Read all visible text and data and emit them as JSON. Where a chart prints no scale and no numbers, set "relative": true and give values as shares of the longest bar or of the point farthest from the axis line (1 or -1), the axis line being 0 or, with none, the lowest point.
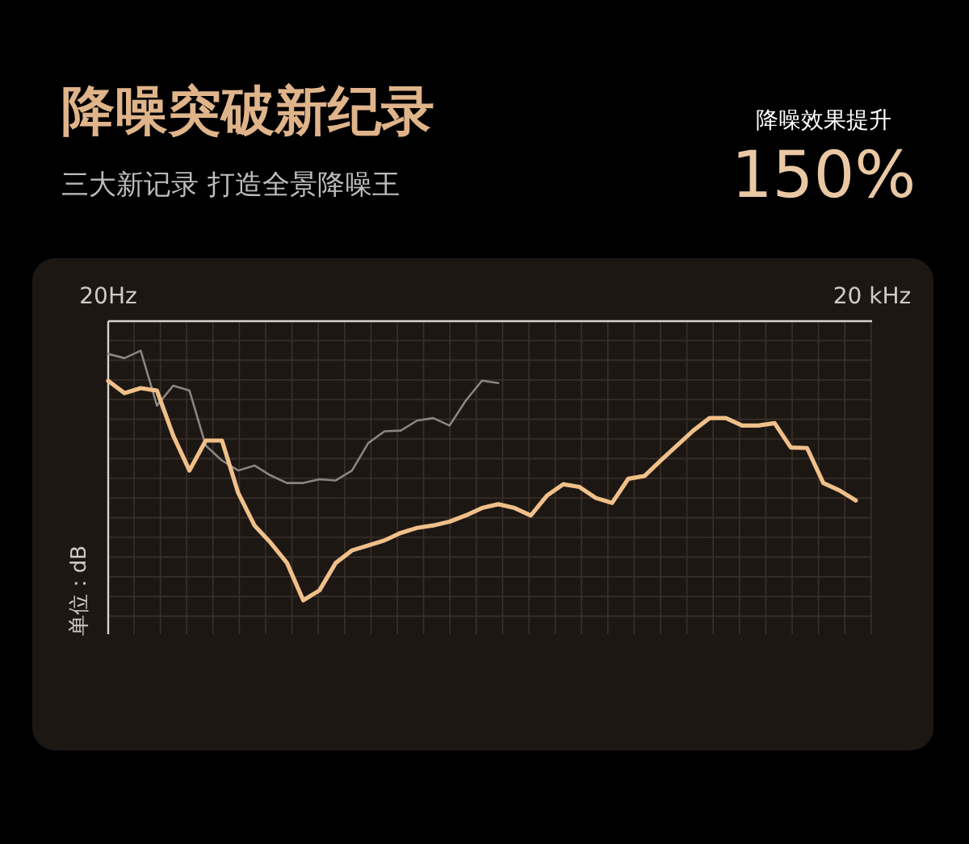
{
  "chart_data": {
    "type": "line",
    "title": "降噪突破新纪录",
    "subtitle": "三大新记录 打造全景降噪王",
    "annotations": [
      "降噪效果提升",
      "150%"
    ],
    "ylabel": "单位：dB",
    "relative": true,
    "grid": true,
    "marker": "none",
    "line_style": "solid",
    "categories": [
      "20Hz",
      null,
      null,
      null,
      null,
      null,
      null,
      null,
      null,
      null,
      null,
      null,
      null,
      null,
      null,
      null,
      null,
      null,
      null,
      null,
      null,
      null,
      null,
      null,
      null,
      null,
      null,
      null,
      null,
      null,
      null,
      null,
      null,
      null,
      null,
      null,
      null,
      null,
      null,
      null,
      null,
      null,
      null,
      null,
      null,
      null,
      null,
      "20 kHz"
    ],
    "series": [
      {
        "color": "#8a8580",
        "values": [
          0.987,
          0.97,
          1,
          0.78,
          0.86,
          0.84,
          0.62,
          0.56,
          0.52,
          0.54,
          0.5,
          0.47,
          0.47,
          0.485,
          0.48,
          0.52,
          0.63,
          0.677,
          0.68,
          0.72,
          0.73,
          0.7,
          0.8,
          0.88,
          0.87,
          null,
          null,
          null,
          null,
          null,
          null,
          null,
          null,
          null,
          null,
          null,
          null,
          null,
          null,
          null,
          null,
          null,
          null,
          null,
          null,
          null,
          null,
          null
        ]
      },
      {
        "color": "#f0c08a",
        "values": [
          0.879,
          0.83,
          0.85,
          0.84,
          0.66,
          0.52,
          0.64,
          0.64,
          0.43,
          0.3,
          0.23,
          0.15,
          0,
          0.04,
          0.15,
          0.2,
          0.22,
          0.24,
          0.27,
          0.29,
          0.3,
          0.315,
          0.34,
          0.37,
          0.385,
          0.37,
          0.34,
          0.42,
          0.465,
          0.454,
          0.41,
          0.39,
          0.487,
          0.498,
          0.56,
          0.62,
          0.68,
          0.73,
          0.73,
          0.7,
          0.7,
          0.71,
          0.612,
          0.61,
          0.47,
          0.44,
          0.4,
          null
        ]
      }
    ]
  }
}
